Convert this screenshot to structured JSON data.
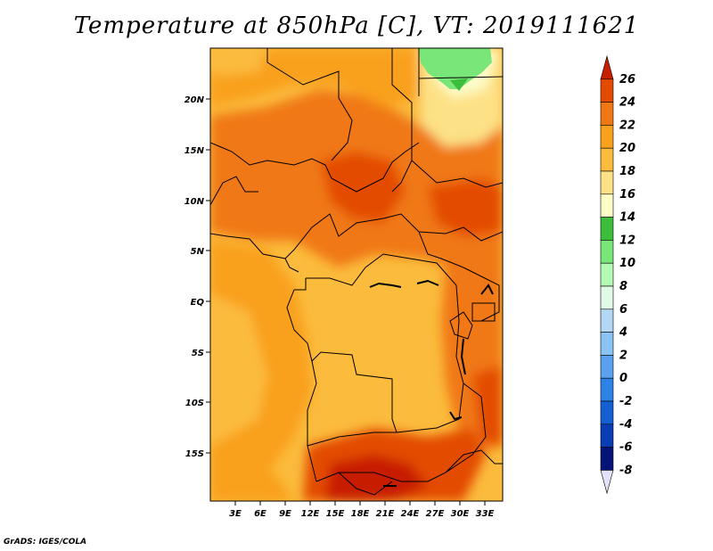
{
  "title": "Temperature at 850hPa [C], VT: 2019111621",
  "credit": "GrADS: IGES/COLA",
  "map": {
    "lon_range": [
      0,
      35
    ],
    "lat_range": [
      -20,
      25
    ],
    "x_ticks": [
      "3E",
      "6E",
      "9E",
      "12E",
      "15E",
      "18E",
      "21E",
      "24E",
      "27E",
      "30E",
      "33E"
    ],
    "y_ticks": [
      "20N",
      "15N",
      "10N",
      "5N",
      "EQ",
      "5S",
      "10S",
      "15S"
    ],
    "field": "temperature at 850hPa",
    "units": "C"
  },
  "colorbar": {
    "levels": [
      "26",
      "24",
      "22",
      "20",
      "18",
      "16",
      "14",
      "12",
      "10",
      "8",
      "6",
      "4",
      "2",
      "0",
      "-2",
      "-4",
      "-6",
      "-8"
    ],
    "colors_top_to_bottom": [
      "#c81e00",
      "#e34b00",
      "#f07814",
      "#f9a01e",
      "#fbbb3c",
      "#fde186",
      "#fdfdc8",
      "#3cbe3c",
      "#78e678",
      "#b4fab4",
      "#e1fae6",
      "#b4d7f5",
      "#8cc3f5",
      "#5ca0f0",
      "#2d82e6",
      "#1460d2",
      "#0a3cb4",
      "#051478",
      "#e1e1fa"
    ]
  }
}
